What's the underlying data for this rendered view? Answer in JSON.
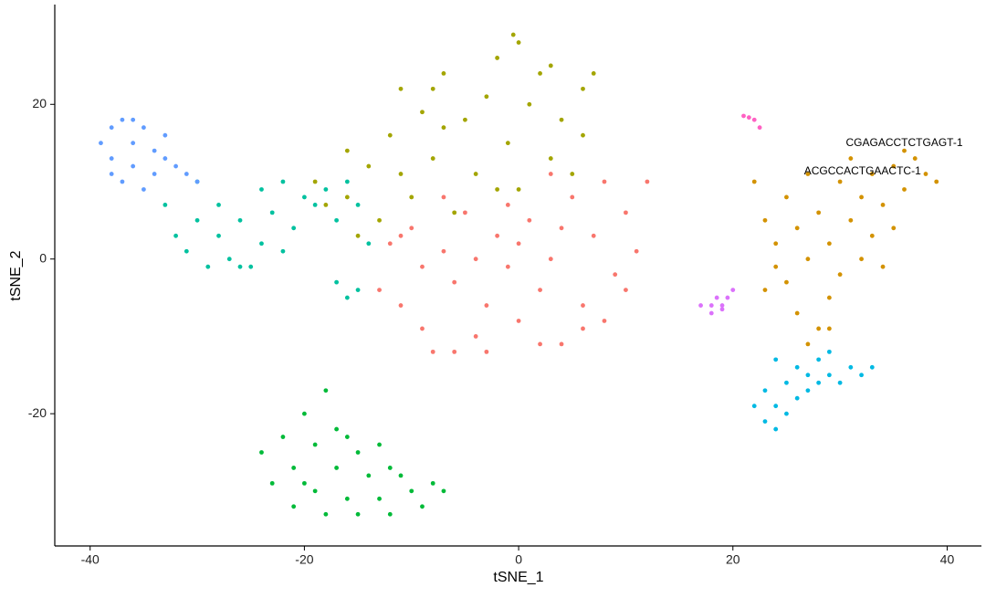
{
  "chart_data": {
    "type": "scatter",
    "x_label": "tSNE_1",
    "y_label": "tSNE_2",
    "xlim": [
      -43.3,
      43.2
    ],
    "ylim": [
      -37.1,
      32.9
    ],
    "xticks": [
      -40,
      -20,
      0,
      20,
      40
    ],
    "yticks": [
      -20,
      0,
      20
    ],
    "grid": false,
    "series": [
      {
        "color": "#F8766D",
        "x": [
          -13,
          -12,
          -11,
          -10,
          -9,
          -8,
          -7,
          -6,
          -5,
          -4,
          -3,
          -2,
          -1,
          0,
          1,
          2,
          3,
          4,
          5,
          6,
          7,
          8,
          9,
          10,
          11,
          12,
          -6,
          -3,
          2,
          6,
          -9,
          -11,
          4,
          -1,
          8,
          10,
          -7,
          3,
          0,
          -4
        ],
        "y": [
          -4,
          2,
          -6,
          4,
          -9,
          -12,
          1,
          -3,
          6,
          -10,
          -6,
          3,
          -1,
          -8,
          5,
          -4,
          0,
          -11,
          8,
          -6,
          3,
          10,
          -2,
          6,
          1,
          10,
          -12,
          -12,
          -11,
          -9,
          -1,
          3,
          4,
          7,
          -8,
          -4,
          8,
          11,
          2,
          0
        ]
      },
      {
        "color": "#A3A500",
        "x": [
          -19,
          -18,
          -16,
          -15,
          -14,
          -13,
          -12,
          -11,
          -10,
          -9,
          -8,
          -7,
          -6,
          -5,
          -4,
          -3,
          -2,
          -1,
          0,
          0,
          1,
          2,
          3,
          4,
          5,
          6,
          7,
          6,
          -7,
          -2,
          3,
          -11,
          -16,
          -8,
          -0.5
        ],
        "y": [
          10,
          7,
          8,
          3,
          12,
          5,
          16,
          22,
          8,
          19,
          13,
          24,
          6,
          18,
          11,
          21,
          26,
          15,
          28,
          9,
          20,
          24,
          13,
          18,
          11,
          22,
          24,
          16,
          17,
          9,
          25,
          11,
          14,
          22,
          29
        ]
      },
      {
        "color": "#00BA38",
        "x": [
          -24,
          -23,
          -22,
          -21,
          -21,
          -20,
          -19,
          -19,
          -18,
          -17,
          -17,
          -16,
          -15,
          -15,
          -14,
          -13,
          -13,
          -12,
          -11,
          -10,
          -9,
          -8,
          -7,
          -18,
          -20,
          -16,
          -12
        ],
        "y": [
          -25,
          -29,
          -23,
          -27,
          -32,
          -20,
          -24,
          -30,
          -33,
          -22,
          -27,
          -31,
          -25,
          -33,
          -28,
          -24,
          -31,
          -33,
          -28,
          -30,
          -32,
          -29,
          -30,
          -17,
          -29,
          -23,
          -27
        ]
      },
      {
        "color": "#00C19F",
        "x": [
          -33,
          -32,
          -31,
          -30,
          -29,
          -28,
          -27,
          -26,
          -25,
          -24,
          -24,
          -23,
          -22,
          -21,
          -20,
          -19,
          -18,
          -17,
          -16,
          -15,
          -14,
          -17,
          -16,
          -15,
          -26,
          -30,
          -22,
          -28
        ],
        "y": [
          7,
          3,
          1,
          5,
          -1,
          3,
          0,
          5,
          -1,
          9,
          2,
          6,
          10,
          4,
          8,
          7,
          9,
          5,
          10,
          7,
          2,
          -3,
          -5,
          -4,
          -1,
          10,
          1,
          7
        ]
      },
      {
        "color": "#619CFF",
        "x": [
          -39,
          -38,
          -38,
          -37,
          -37,
          -36,
          -36,
          -35,
          -35,
          -34,
          -34,
          -33,
          -32,
          -31,
          -30,
          -36,
          -38,
          -33
        ],
        "y": [
          15,
          17,
          13,
          18,
          10,
          15,
          12,
          17,
          9,
          14,
          11,
          16,
          12,
          11,
          10,
          18,
          11,
          13
        ]
      },
      {
        "color": "#D39200",
        "x": [
          22,
          23,
          23,
          24,
          25,
          25,
          26,
          26,
          27,
          27,
          28,
          28,
          29,
          29,
          30,
          30,
          31,
          31,
          32,
          32,
          33,
          33,
          34,
          35,
          35,
          36,
          37,
          38,
          39,
          36,
          29,
          34,
          24,
          27
        ],
        "y": [
          10,
          5,
          -4,
          2,
          8,
          -3,
          4,
          -7,
          11,
          0,
          -9,
          6,
          2,
          -5,
          10,
          -2,
          5,
          13,
          0,
          8,
          11,
          3,
          7,
          12,
          4,
          9,
          13,
          11,
          10,
          14,
          -9,
          -1,
          -1,
          -11
        ]
      },
      {
        "color": "#00B9E3",
        "x": [
          22,
          23,
          23,
          24,
          24,
          25,
          25,
          26,
          26,
          27,
          28,
          28,
          29,
          30,
          31,
          32,
          33,
          24,
          27,
          29
        ],
        "y": [
          -19,
          -17,
          -21,
          -13,
          -19,
          -16,
          -20,
          -14,
          -18,
          -17,
          -13,
          -16,
          -15,
          -16,
          -14,
          -15,
          -14,
          -22,
          -15,
          -12
        ]
      },
      {
        "color": "#DB72FB",
        "x": [
          17,
          18,
          18.5,
          19,
          19.5,
          20,
          18,
          19
        ],
        "y": [
          -6,
          -6,
          -5,
          -6,
          -5,
          -4,
          -7,
          -6.5
        ]
      },
      {
        "color": "#FF61C3",
        "x": [
          21,
          21.5,
          22,
          22.5
        ],
        "y": [
          18.5,
          18.3,
          18,
          17
        ]
      }
    ],
    "annotations": [
      {
        "text": "CGAGACCTCTGAGT-1",
        "x": 36,
        "y": 15
      },
      {
        "text": "ACGCCACTGAACTC-1",
        "x": 32.1,
        "y": 11.3
      }
    ]
  }
}
